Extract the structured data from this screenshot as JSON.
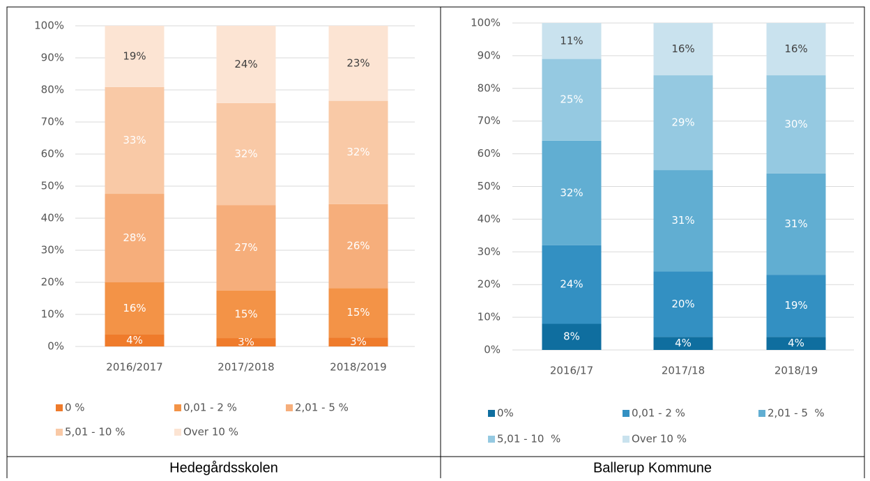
{
  "chart_data": [
    {
      "type": "stacked_bar",
      "caption": "Hedegårdsskolen",
      "categories": [
        "2016/2017",
        "2017/2018",
        "2018/2019"
      ],
      "ylim": [
        0,
        100
      ],
      "yticks": [
        {
          "value": 0,
          "label": "0%"
        },
        {
          "value": 10,
          "label": "10%"
        },
        {
          "value": 20,
          "label": "20%"
        },
        {
          "value": 30,
          "label": "30%"
        },
        {
          "value": 40,
          "label": "40%"
        },
        {
          "value": 50,
          "label": "50%"
        },
        {
          "value": 60,
          "label": "60%"
        },
        {
          "value": 70,
          "label": "70%"
        },
        {
          "value": 80,
          "label": "80%"
        },
        {
          "value": 90,
          "label": "90%"
        },
        {
          "value": 100,
          "label": "100%"
        }
      ],
      "grid": true,
      "series": [
        {
          "name": "0 %",
          "color": "#ef7b2b",
          "values": [
            3.7,
            2.6,
            2.8
          ],
          "value_labels": [
            "4%",
            "3%",
            "3%"
          ]
        },
        {
          "name": "0,01 - 2 %",
          "color": "#f39347",
          "values": [
            16.3,
            14.8,
            15.4
          ],
          "value_labels": [
            "16%",
            "15%",
            "15%"
          ]
        },
        {
          "name": "2,01 - 5 %",
          "color": "#f6ae7b",
          "values": [
            27.6,
            26.7,
            26.2
          ],
          "value_labels": [
            "28%",
            "27%",
            "26%"
          ]
        },
        {
          "name": "5,01 - 10 %",
          "color": "#f9c9a6",
          "values": [
            33.3,
            31.8,
            32.2
          ],
          "value_labels": [
            "33%",
            "32%",
            "32%"
          ]
        },
        {
          "name": "Over 10 %",
          "color": "#fce4d3",
          "values": [
            19.1,
            24.1,
            23.4
          ],
          "value_labels": [
            "19%",
            "24%",
            "23%"
          ]
        }
      ]
    },
    {
      "type": "stacked_bar",
      "caption": "Ballerup Kommune",
      "categories": [
        "2016/17",
        "2017/18",
        "2018/19"
      ],
      "ylim": [
        0,
        100
      ],
      "yticks": [
        {
          "value": 0,
          "label": "0%"
        },
        {
          "value": 10,
          "label": "10%"
        },
        {
          "value": 20,
          "label": "20%"
        },
        {
          "value": 30,
          "label": "30%"
        },
        {
          "value": 40,
          "label": "40%"
        },
        {
          "value": 50,
          "label": "50%"
        },
        {
          "value": 60,
          "label": "60%"
        },
        {
          "value": 70,
          "label": "70%"
        },
        {
          "value": 80,
          "label": "80%"
        },
        {
          "value": 90,
          "label": "90%"
        },
        {
          "value": 100,
          "label": "100%"
        }
      ],
      "grid": true,
      "series": [
        {
          "name": "0%",
          "color": "#0f6e9f",
          "values": [
            8,
            4,
            4
          ],
          "value_labels": [
            "8%",
            "4%",
            "4%"
          ]
        },
        {
          "name": "0,01 - 2 %",
          "color": "#3390c2",
          "values": [
            24,
            20,
            19
          ],
          "value_labels": [
            "24%",
            "20%",
            "19%"
          ]
        },
        {
          "name": "2,01 - 5  %",
          "color": "#61aed2",
          "values": [
            32,
            31,
            31
          ],
          "value_labels": [
            "32%",
            "31%",
            "31%"
          ]
        },
        {
          "name": "5,01 - 10  %",
          "color": "#95c9e1",
          "values": [
            25,
            29,
            30
          ],
          "value_labels": [
            "25%",
            "29%",
            "30%"
          ]
        },
        {
          "name": "Over 10 %",
          "color": "#c9e2ee",
          "values": [
            11,
            16,
            16
          ],
          "value_labels": [
            "11%",
            "16%",
            "16%"
          ]
        }
      ]
    }
  ]
}
